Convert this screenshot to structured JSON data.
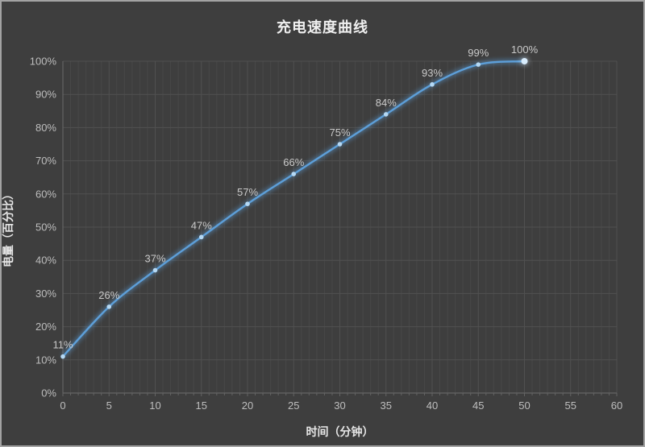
{
  "title": "充电速度曲线",
  "chart_data": {
    "type": "line",
    "title": "充电速度曲线",
    "xlabel": "时间（分钟）",
    "ylabel": "电量（百分比）",
    "x": [
      0,
      5,
      10,
      15,
      20,
      25,
      30,
      35,
      40,
      45,
      50
    ],
    "values": [
      11,
      26,
      37,
      47,
      57,
      66,
      75,
      84,
      93,
      99,
      100
    ],
    "point_labels": [
      "11%",
      "26%",
      "37%",
      "47%",
      "57%",
      "66%",
      "75%",
      "84%",
      "93%",
      "99%",
      "100%"
    ],
    "xlim": [
      0,
      60
    ],
    "ylim": [
      0,
      100
    ],
    "x_ticks": [
      0,
      5,
      10,
      15,
      20,
      25,
      30,
      35,
      40,
      45,
      50,
      55,
      60
    ],
    "y_ticks": [
      0,
      10,
      20,
      30,
      40,
      50,
      60,
      70,
      80,
      90,
      100
    ],
    "y_tick_labels": [
      "0%",
      "10%",
      "20%",
      "30%",
      "40%",
      "50%",
      "60%",
      "70%",
      "80%",
      "90%",
      "100%"
    ],
    "grid": true,
    "legend_position": "none",
    "smooth": true,
    "colors": {
      "background": "#3e3e3e",
      "frame_border": "#a3a3a3",
      "line": "#5d9fd9",
      "marker": "#b5d9f5",
      "end_marker": "#d9edfd",
      "grid_major": "#505050",
      "grid_minor": "#484848",
      "axis": "#646464",
      "tick_label": "#bdbdbd",
      "data_label": "#c9c9c9",
      "title": "#f0f0f0",
      "axis_title": "#e6e6e6"
    }
  }
}
